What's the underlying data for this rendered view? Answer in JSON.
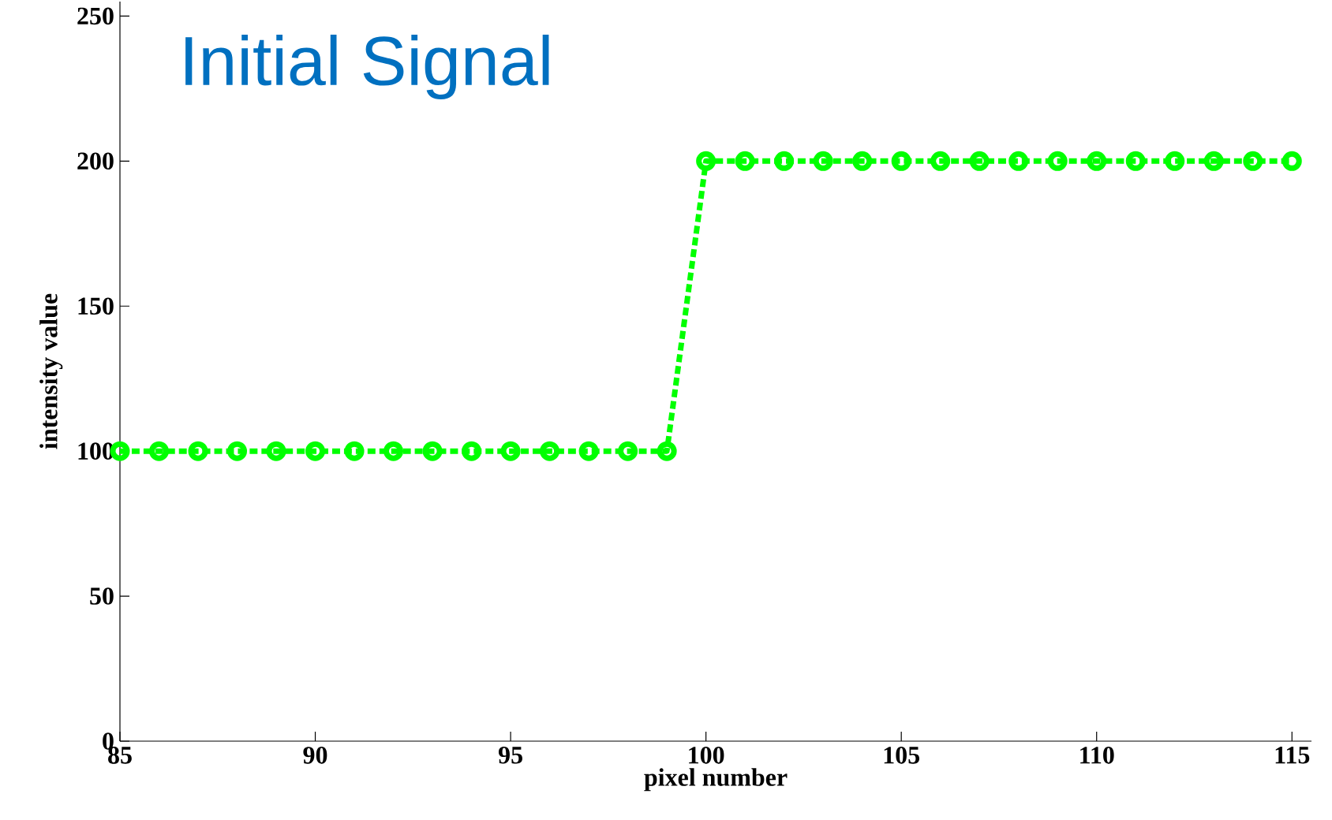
{
  "chart_data": {
    "type": "line",
    "title": "Initial Signal",
    "xlabel": "pixel number",
    "ylabel": "intensity value",
    "x": [
      85,
      86,
      87,
      88,
      89,
      90,
      91,
      92,
      93,
      94,
      95,
      96,
      97,
      98,
      99,
      100,
      101,
      102,
      103,
      104,
      105,
      106,
      107,
      108,
      109,
      110,
      111,
      112,
      113,
      114,
      115
    ],
    "series": [
      {
        "color": "#00ff00",
        "values": [
          100,
          100,
          100,
          100,
          100,
          100,
          100,
          100,
          100,
          100,
          100,
          100,
          100,
          100,
          100,
          200,
          200,
          200,
          200,
          200,
          200,
          200,
          200,
          200,
          200,
          200,
          200,
          200,
          200,
          200,
          200
        ]
      }
    ],
    "xlim": [
      85,
      115.5
    ],
    "ylim": [
      0,
      255
    ],
    "xticks": [
      85,
      90,
      95,
      100,
      105,
      110,
      115
    ],
    "yticks": [
      0,
      50,
      100,
      150,
      200,
      250
    ],
    "marker": "circle",
    "line_style": "dashed"
  }
}
